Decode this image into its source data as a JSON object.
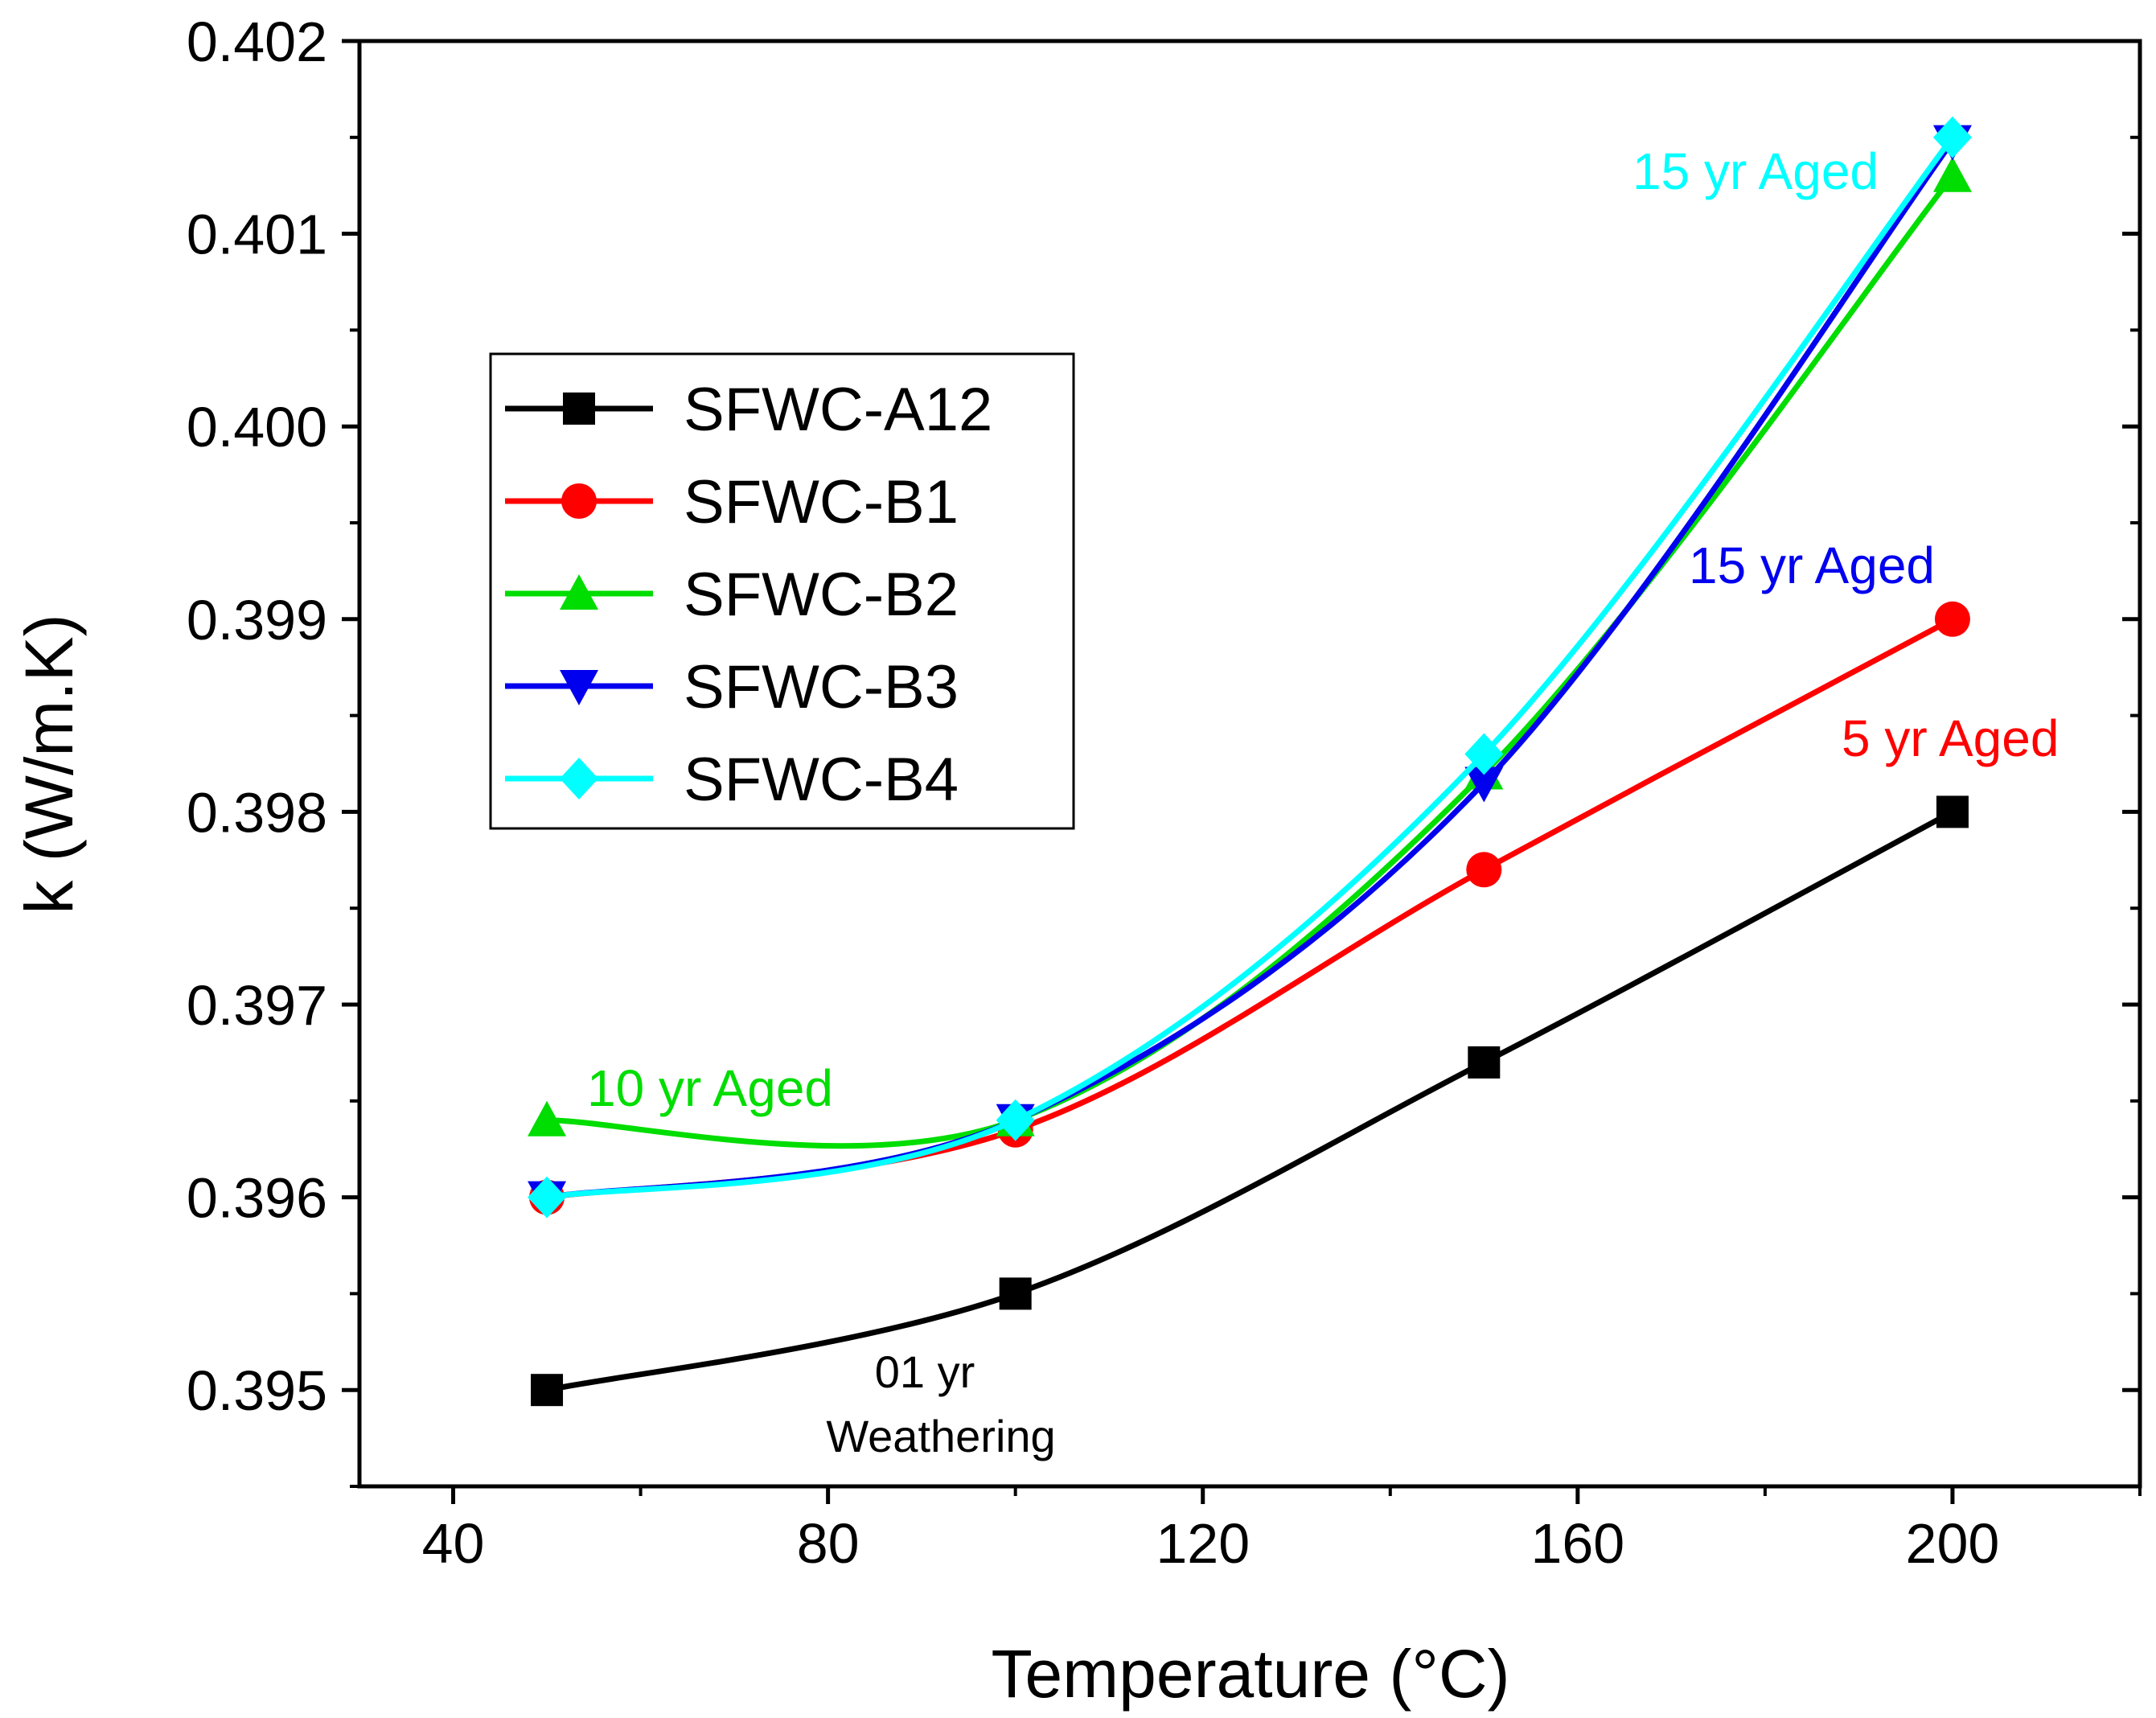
{
  "chart_data": {
    "type": "line",
    "xlabel": "Temperature (°C)",
    "ylabel": "k (W/m.K)",
    "xlim": [
      30,
      220
    ],
    "ylim": [
      0.3945,
      0.402
    ],
    "x_ticks": [
      "40",
      "80",
      "120",
      "160",
      "200"
    ],
    "y_ticks": [
      "0.395",
      "0.396",
      "0.397",
      "0.398",
      "0.399",
      "0.400",
      "0.401",
      "0.402"
    ],
    "x": [
      50,
      100,
      150,
      200
    ],
    "series": [
      {
        "name": "SFWC-A12",
        "color": "#000000",
        "marker": "square",
        "values": [
          0.395,
          0.3955,
          0.3967,
          0.398
        ]
      },
      {
        "name": "SFWC-B1",
        "color": "#ff0000",
        "marker": "circle",
        "values": [
          0.396,
          0.39635,
          0.3977,
          0.399
        ]
      },
      {
        "name": "SFWC-B2",
        "color": "#00dd00",
        "marker": "triangle-up",
        "values": [
          0.3964,
          0.3964,
          0.3982,
          0.4013
        ]
      },
      {
        "name": "SFWC-B3",
        "color": "#0000ee",
        "marker": "triangle-down",
        "values": [
          0.396,
          0.3964,
          0.39815,
          0.40148
        ]
      },
      {
        "name": "SFWC-B4",
        "color": "#00ffff",
        "marker": "diamond",
        "values": [
          0.396,
          0.3964,
          0.3983,
          0.4015
        ]
      }
    ],
    "legend_position": "upper-left",
    "annotations": [
      {
        "text": "15 yr Aged",
        "color": "#00ffff"
      },
      {
        "text": "15 yr Aged",
        "color": "#0000ee"
      },
      {
        "text": "5 yr Aged",
        "color": "#ff0000"
      },
      {
        "text": "10 yr Aged",
        "color": "#00dd00"
      },
      {
        "text": "01 yr",
        "color": "#000000"
      },
      {
        "text": "Weathering",
        "color": "#000000"
      }
    ]
  }
}
